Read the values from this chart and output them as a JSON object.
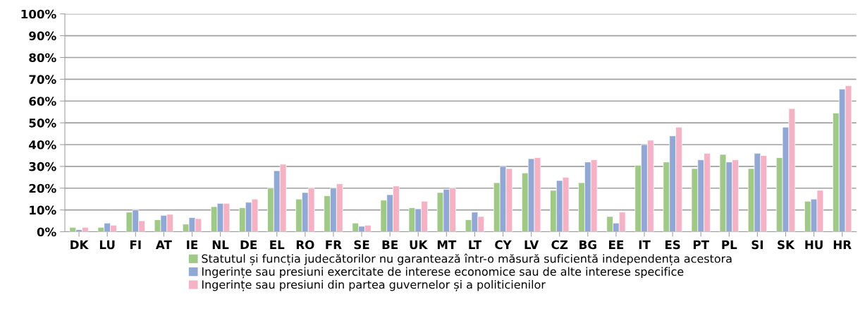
{
  "chart_data": {
    "type": "bar",
    "categories": [
      "DK",
      "LU",
      "FI",
      "AT",
      "IE",
      "NL",
      "DE",
      "EL",
      "RO",
      "FR",
      "SE",
      "BE",
      "UK",
      "MT",
      "LT",
      "CY",
      "LV",
      "CZ",
      "BG",
      "EE",
      "IT",
      "ES",
      "PT",
      "PL",
      "SI",
      "SK",
      "HU",
      "HR"
    ],
    "series": [
      {
        "name": "Statutul și funcția judecătorilor nu garantează într-o măsură suficientă independența acestora",
        "color": "#a0c987",
        "values": [
          2,
          2,
          9,
          5.5,
          3.5,
          11.5,
          11,
          20,
          15,
          16.5,
          4,
          14.5,
          11,
          18,
          5.5,
          22.5,
          27,
          19,
          22.5,
          7,
          30.5,
          32,
          29,
          35.5,
          29,
          34,
          14,
          54.5
        ]
      },
      {
        "name": "Ingerințe sau presiuni exercitate de interese economice sau de alte interese specifice",
        "color": "#91a8d4",
        "values": [
          1,
          4,
          10,
          7.5,
          6.5,
          13,
          13.5,
          28,
          18,
          20,
          2.5,
          17,
          10.5,
          19.5,
          9,
          30,
          33.5,
          23.5,
          32,
          4,
          40,
          44,
          33,
          32,
          36,
          48,
          15,
          65.5
        ]
      },
      {
        "name": "Ingerințe sau presiuni din partea guvernelor și a politicienilor",
        "color": "#f5b2c4",
        "values": [
          2,
          3,
          5,
          8,
          6,
          13,
          15,
          31,
          20,
          22,
          3,
          21,
          14,
          20,
          7,
          29,
          34,
          25,
          33,
          9,
          42,
          48,
          36,
          33,
          35,
          56.5,
          19,
          67
        ]
      }
    ],
    "ylim": [
      0,
      100
    ],
    "yticks": [
      {
        "value": 0,
        "label": "0%"
      },
      {
        "value": 10,
        "label": "10%"
      },
      {
        "value": 20,
        "label": "20%"
      },
      {
        "value": 30,
        "label": "30%"
      },
      {
        "value": 40,
        "label": "40%"
      },
      {
        "value": 50,
        "label": "50%"
      },
      {
        "value": 60,
        "label": "60%"
      },
      {
        "value": 70,
        "label": "70%"
      },
      {
        "value": 80,
        "label": "80%"
      },
      {
        "value": 90,
        "label": "90%"
      },
      {
        "value": 100,
        "label": "100%"
      }
    ],
    "grid": "y",
    "legend": "bottom"
  }
}
